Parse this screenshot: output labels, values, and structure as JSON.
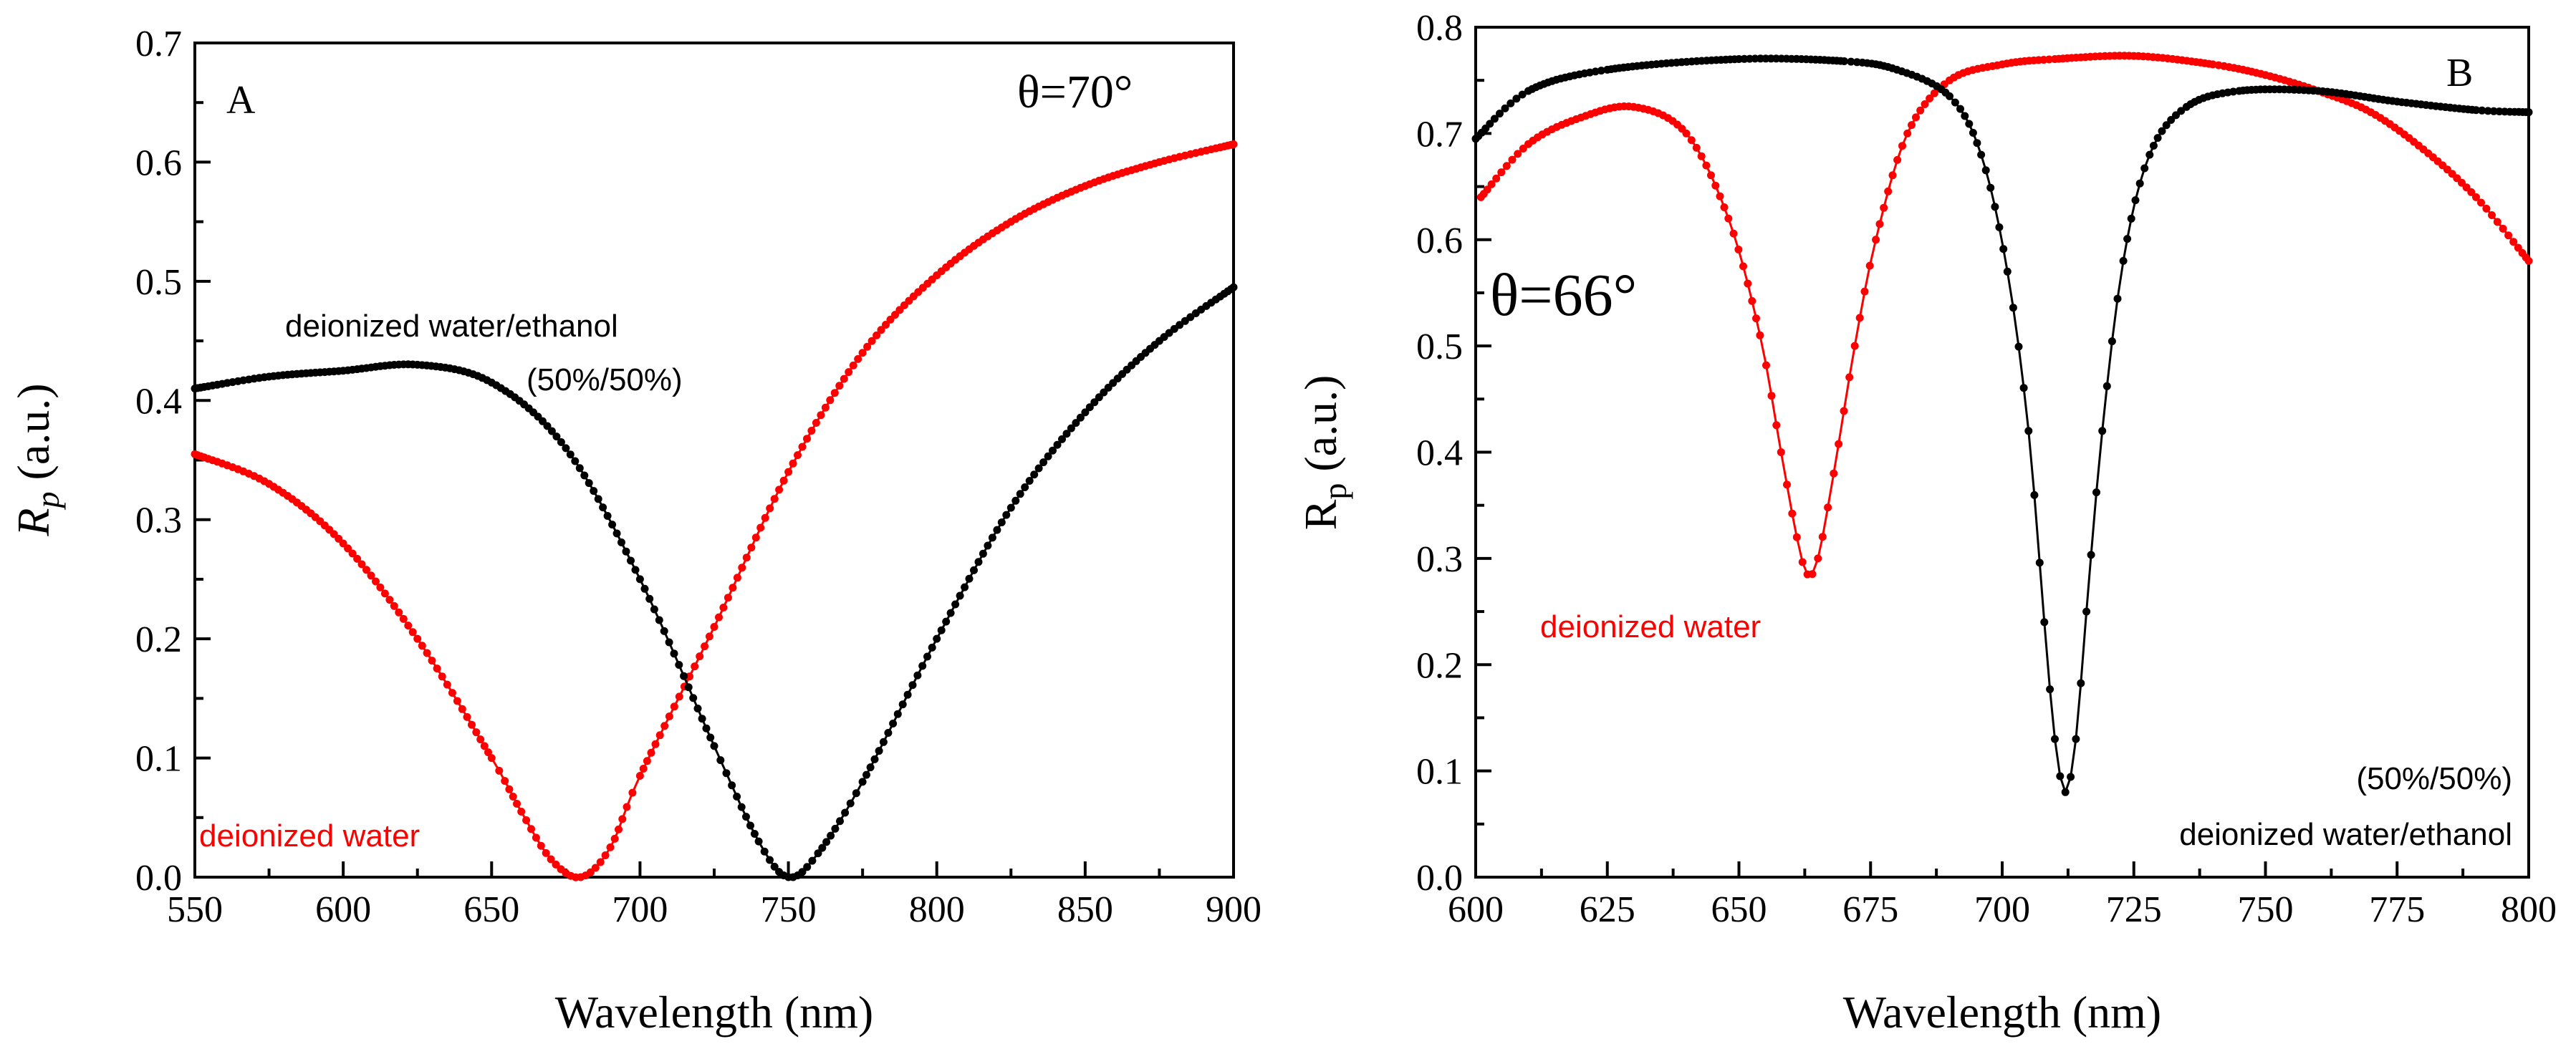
{
  "figure": {
    "colors": {
      "water": "#ff0000",
      "mix": "#000000"
    }
  },
  "chart_data": [
    {
      "type": "line",
      "panel": "A",
      "angle_label": "θ=70°",
      "xlabel": "Wavelength (nm)",
      "ylabel_main": "R",
      "ylabel_sub": "p",
      "ylabel_suffix": " (a.u.)",
      "xlim": [
        550,
        900
      ],
      "ylim": [
        0.0,
        0.7
      ],
      "xticks": [
        550,
        600,
        650,
        700,
        750,
        800,
        850,
        900
      ],
      "xtick_labels": [
        "550",
        "600",
        "650",
        "700",
        "750",
        "800",
        "850",
        "900"
      ],
      "yticks": [
        0.0,
        0.1,
        0.2,
        0.3,
        0.4,
        0.5,
        0.6,
        0.7
      ],
      "ytick_labels": [
        "0.0",
        "0.1",
        "0.2",
        "0.3",
        "0.4",
        "0.5",
        "0.6",
        "0.7"
      ],
      "series": [
        {
          "name": "deionized water",
          "color": "#ff0000",
          "x": [
            550,
            575,
            600,
            625,
            650,
            660,
            670,
            680,
            690,
            700,
            725,
            750,
            775,
            800,
            825,
            850,
            875,
            900
          ],
          "y": [
            0.355,
            0.33,
            0.28,
            0.2,
            0.1,
            0.055,
            0.015,
            0.0,
            0.025,
            0.085,
            0.21,
            0.34,
            0.44,
            0.505,
            0.55,
            0.58,
            0.6,
            0.615
          ]
        },
        {
          "name": "deionized water/ethanol (50%/50%)",
          "color": "#000000",
          "x": [
            550,
            575,
            600,
            625,
            650,
            675,
            700,
            725,
            740,
            750,
            760,
            775,
            800,
            825,
            850,
            875,
            900
          ],
          "y": [
            0.41,
            0.42,
            0.425,
            0.43,
            0.415,
            0.36,
            0.25,
            0.11,
            0.03,
            0.0,
            0.02,
            0.08,
            0.2,
            0.31,
            0.39,
            0.45,
            0.495
          ]
        }
      ],
      "annotations": [
        {
          "text": "deionized water/ethanol",
          "color": "#000000"
        },
        {
          "text": "(50%/50%)",
          "color": "#000000"
        },
        {
          "text": "deionized water",
          "color": "#ff0000"
        }
      ]
    },
    {
      "type": "line",
      "panel": "B",
      "angle_label": "θ=66°",
      "xlabel": "Wavelength (nm)",
      "ylabel_main": "R",
      "ylabel_sub": "p",
      "ylabel_suffix": " (a.u.)",
      "xlim": [
        600,
        800
      ],
      "ylim": [
        0.0,
        0.8
      ],
      "xticks": [
        600,
        625,
        650,
        675,
        700,
        725,
        750,
        775,
        800
      ],
      "xtick_labels": [
        "600",
        "625",
        "650",
        "675",
        "700",
        "725",
        "750",
        "775",
        "800"
      ],
      "yticks": [
        0.0,
        0.1,
        0.2,
        0.3,
        0.4,
        0.5,
        0.6,
        0.7,
        0.8
      ],
      "ytick_labels": [
        "0.0",
        "0.1",
        "0.2",
        "0.3",
        "0.4",
        "0.5",
        "0.6",
        "0.7",
        "0.8"
      ],
      "series": [
        {
          "name": "deionized water",
          "color": "#ff0000",
          "x": [
            601,
            610,
            620,
            630,
            640,
            648,
            654,
            658,
            661,
            663,
            665,
            668,
            672,
            676,
            682,
            690,
            700,
            710,
            725,
            740,
            750,
            760,
            770,
            780,
            790,
            800
          ],
          "y": [
            0.64,
            0.69,
            0.715,
            0.725,
            0.7,
            0.62,
            0.51,
            0.4,
            0.32,
            0.285,
            0.3,
            0.38,
            0.5,
            0.6,
            0.7,
            0.75,
            0.765,
            0.77,
            0.773,
            0.765,
            0.755,
            0.74,
            0.72,
            0.685,
            0.64,
            0.58
          ]
        },
        {
          "name": "deionized water/ethanol (50%/50%)",
          "color": "#000000",
          "x": [
            600,
            610,
            625,
            650,
            670,
            680,
            690,
            696,
            701,
            705,
            708,
            710,
            712,
            714,
            716,
            719,
            723,
            728,
            735,
            745,
            760,
            775,
            790,
            800
          ],
          "y": [
            0.695,
            0.74,
            0.76,
            0.77,
            0.768,
            0.76,
            0.735,
            0.68,
            0.57,
            0.42,
            0.24,
            0.13,
            0.08,
            0.13,
            0.25,
            0.42,
            0.58,
            0.68,
            0.725,
            0.74,
            0.74,
            0.73,
            0.722,
            0.72
          ]
        }
      ],
      "annotations": [
        {
          "text": "deionized water",
          "color": "#ff0000"
        },
        {
          "text": "(50%/50%)",
          "color": "#000000"
        },
        {
          "text": "deionized water/ethanol",
          "color": "#000000"
        }
      ]
    }
  ]
}
